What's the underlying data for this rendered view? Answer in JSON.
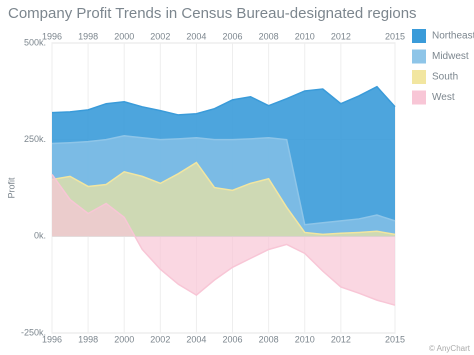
{
  "chart_data": {
    "type": "area",
    "title": "Company Profit Trends in Census Bureau-designated regions",
    "y_label": "Profit",
    "credits": "© AnyChart",
    "x": [
      1996,
      1997,
      1998,
      1999,
      2000,
      2001,
      2002,
      2003,
      2004,
      2005,
      2006,
      2007,
      2008,
      2009,
      2010,
      2011,
      2012,
      2013,
      2014,
      2015
    ],
    "series": [
      {
        "name": "Northeast",
        "color": "#3a9bd9",
        "values": [
          320000,
          322000,
          327000,
          343000,
          348000,
          335000,
          325000,
          314000,
          317000,
          330000,
          353000,
          361000,
          338000,
          356000,
          376000,
          381000,
          343000,
          363000,
          387000,
          335000
        ]
      },
      {
        "name": "Midwest",
        "color": "#8ec5e8",
        "values": [
          240000,
          242000,
          245000,
          250000,
          260000,
          255000,
          250000,
          252000,
          255000,
          250000,
          250000,
          252000,
          255000,
          250000,
          30000,
          35000,
          40000,
          45000,
          55000,
          40000
        ]
      },
      {
        "name": "South",
        "color": "#f2e6a0",
        "values": [
          147000,
          155000,
          129000,
          134000,
          167000,
          155000,
          137000,
          162000,
          191000,
          126000,
          119000,
          137000,
          149000,
          75000,
          10000,
          5000,
          8000,
          10000,
          13000,
          5000
        ]
      },
      {
        "name": "West",
        "color": "#f8c6d6",
        "values": [
          160000,
          95000,
          59000,
          85000,
          49000,
          -34000,
          -85000,
          -124000,
          -152000,
          -113000,
          -80000,
          -57000,
          -34000,
          -21000,
          -44000,
          -90000,
          -131000,
          -147000,
          -165000,
          -178000
        ]
      }
    ],
    "xlim": [
      1996,
      2015
    ],
    "xticks": [
      1996,
      1998,
      2000,
      2002,
      2004,
      2006,
      2008,
      2010,
      2012,
      2015
    ],
    "ylim": [
      -250000,
      500000
    ],
    "yticks": [
      {
        "value": -250000,
        "label": "-250k."
      },
      {
        "value": 0,
        "label": "0k."
      },
      {
        "value": 250000,
        "label": "250k."
      },
      {
        "value": 500000,
        "label": "500k."
      }
    ],
    "grid": true,
    "legend": "right"
  }
}
